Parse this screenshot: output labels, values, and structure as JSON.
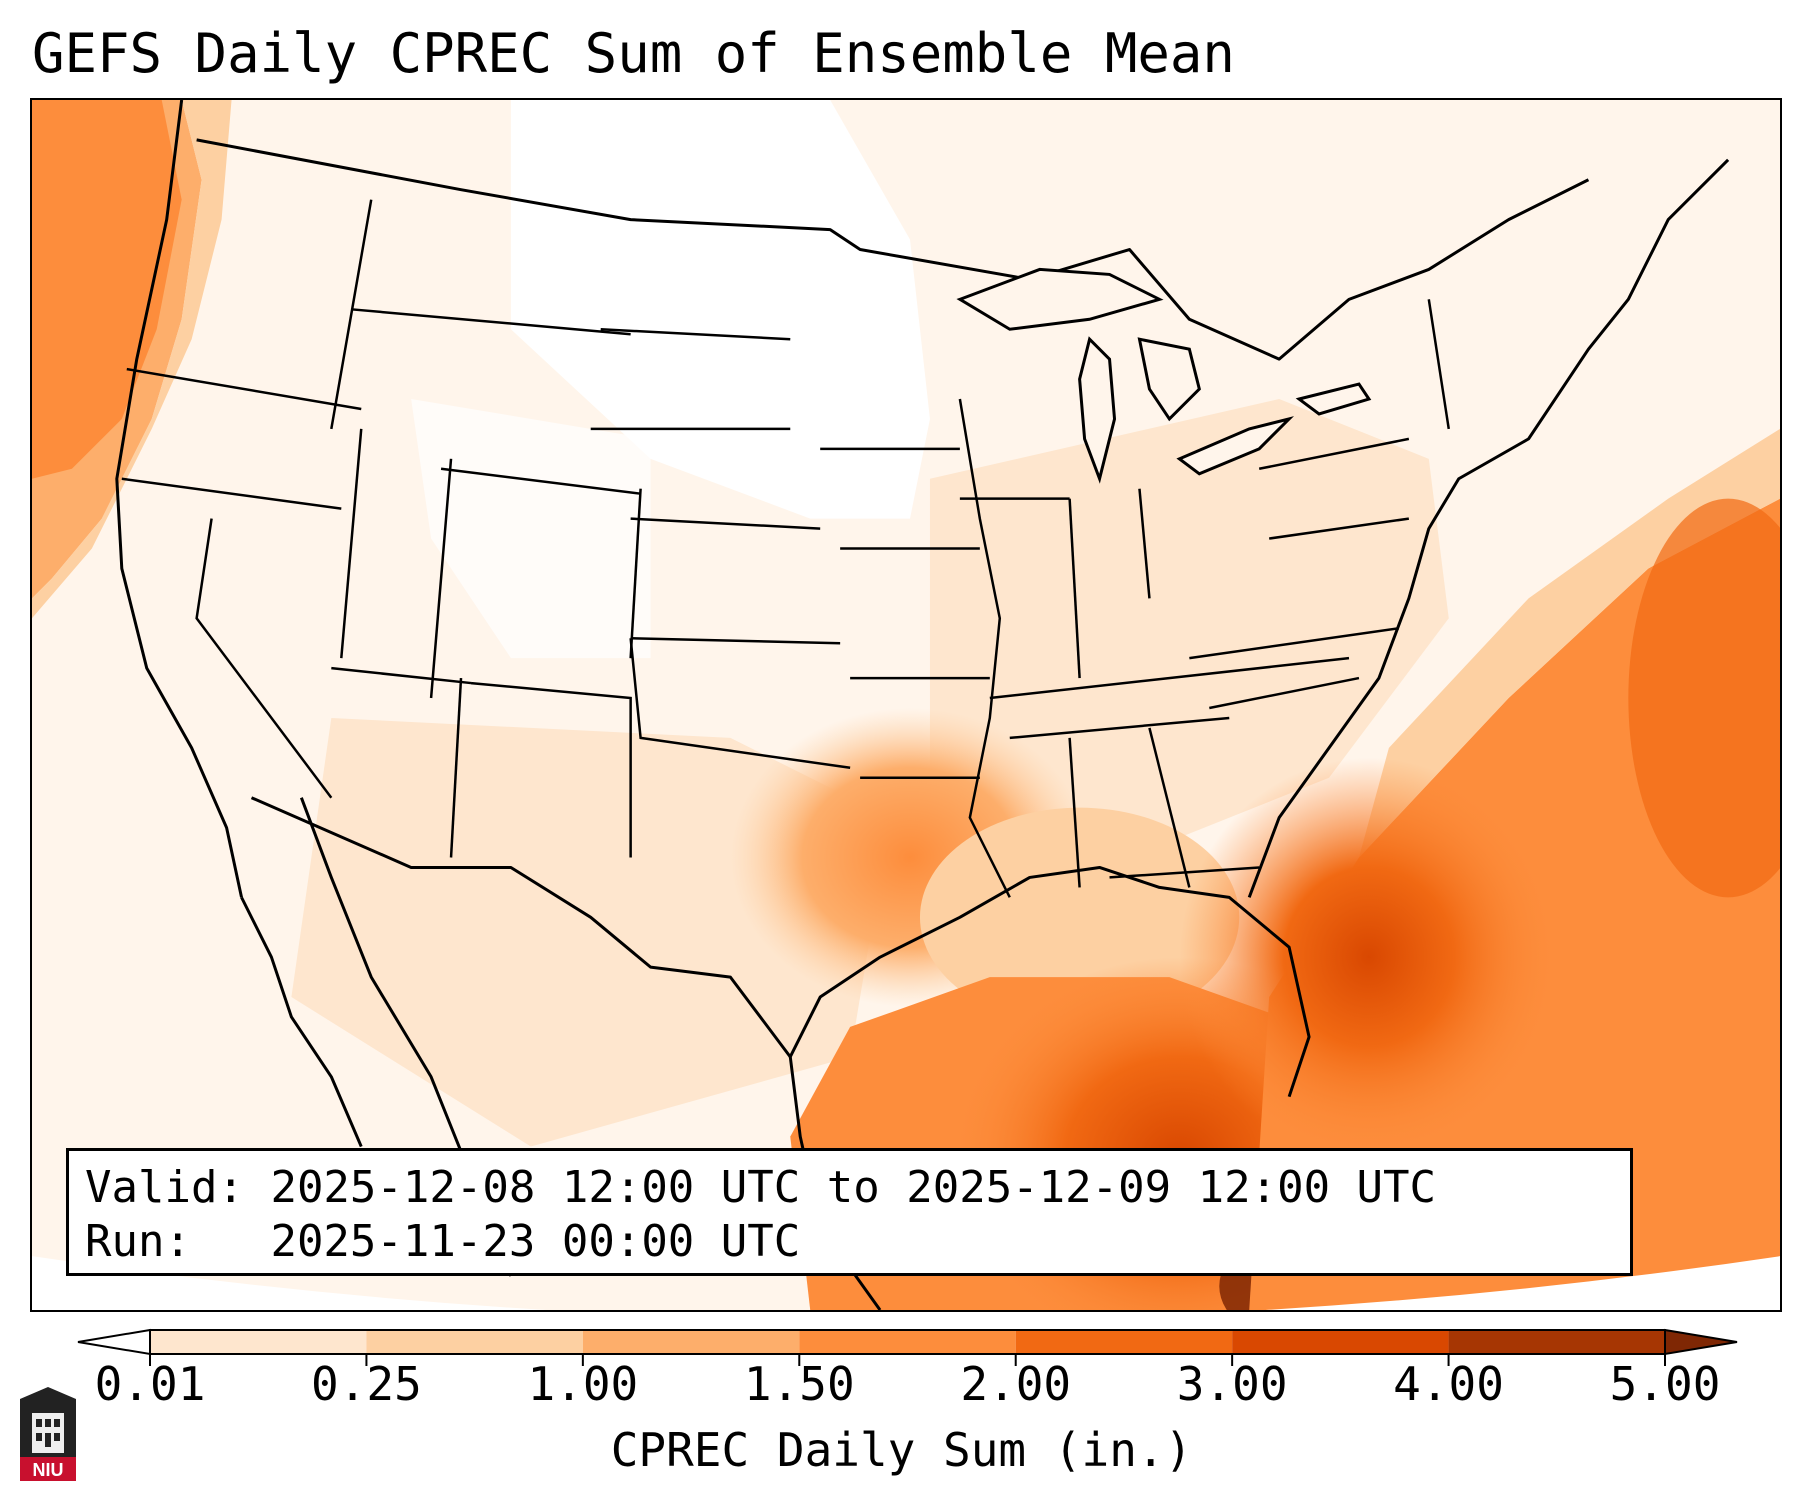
{
  "title": "GEFS Daily CPREC Sum of Ensemble Mean",
  "info": {
    "valid_label": "Valid:",
    "valid_value": "2025-12-08 12:00 UTC to 2025-12-09 12:00 UTC",
    "run_label": "Run:",
    "run_value": "2025-11-23 00:00 UTC"
  },
  "colorbar": {
    "label": "CPREC Daily Sum (in.)",
    "ticks": [
      "0.01",
      "0.25",
      "1.00",
      "1.50",
      "2.00",
      "3.00",
      "4.00",
      "5.00"
    ],
    "colors": [
      "#fff5eb",
      "#fee6ce",
      "#fdd0a2",
      "#fdae6b",
      "#fd8d3c",
      "#f16913",
      "#d94801",
      "#a63603"
    ],
    "under_color": "#ffffff",
    "over_color": "#7f2704"
  },
  "logo": {
    "text": "NIU",
    "accent": "#c8102e"
  }
}
